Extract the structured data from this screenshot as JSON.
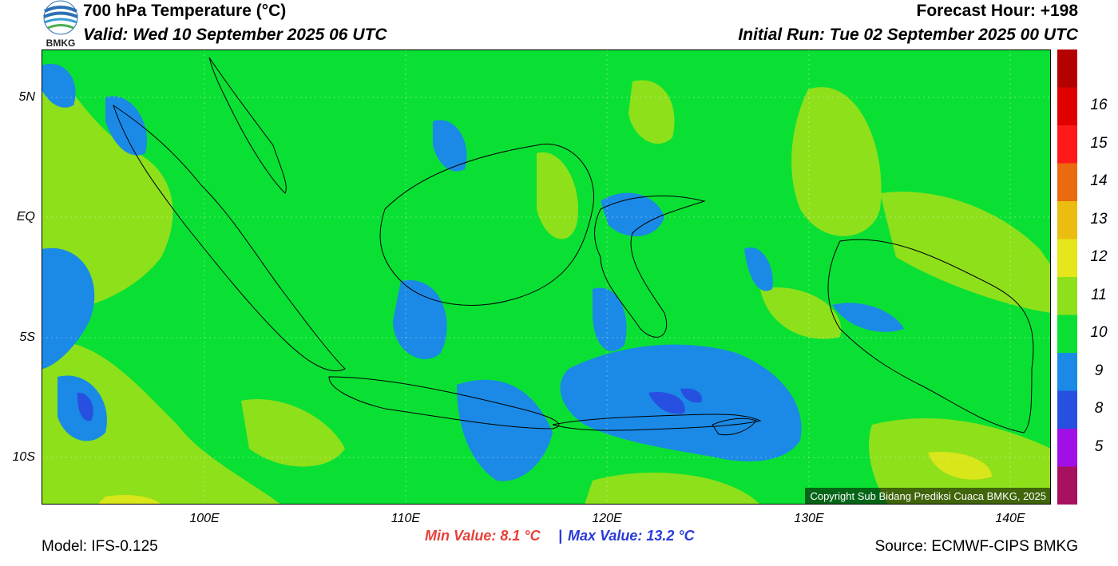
{
  "header": {
    "title": "700 hPa Temperature (°C)",
    "valid": "Valid: Wed 10 September 2025 06 UTC",
    "forecast_hour": "Forecast Hour: +198",
    "initial_run": "Initial Run: Tue 02 September 2025 00 UTC",
    "logo_text": "BMKG"
  },
  "axes": {
    "y_ticks": [
      "5N",
      "EQ",
      "5S",
      "10S"
    ],
    "x_ticks": [
      "100E",
      "110E",
      "120E",
      "130E",
      "140E"
    ]
  },
  "colorbar": {
    "labels": [
      "16",
      "15",
      "14",
      "13",
      "12",
      "11",
      "10",
      "9",
      "8",
      "5"
    ],
    "colors": [
      "#b50000",
      "#e00000",
      "#ff1a1a",
      "#ea6a10",
      "#eabd10",
      "#e6e61a",
      "#8ee01a",
      "#0ae033",
      "#1a8ae6",
      "#2850e0",
      "#a010e6",
      "#a81060"
    ]
  },
  "map_colors": {
    "t11": "#0ae033",
    "t12": "#8ee01a",
    "t10": "#1a8ae6",
    "t9": "#2850e0",
    "t13": "#d8e61a"
  },
  "copyright": "Copyright Sub Bidang Prediksi Cuaca BMKG, 2025",
  "footer": {
    "model": "Model: IFS-0.125",
    "min_value": "Min Value: 8.1 °C",
    "separator": "|",
    "max_value": "Max Value: 13.2 °C",
    "source": "Source: ECMWF-CIPS BMKG"
  }
}
